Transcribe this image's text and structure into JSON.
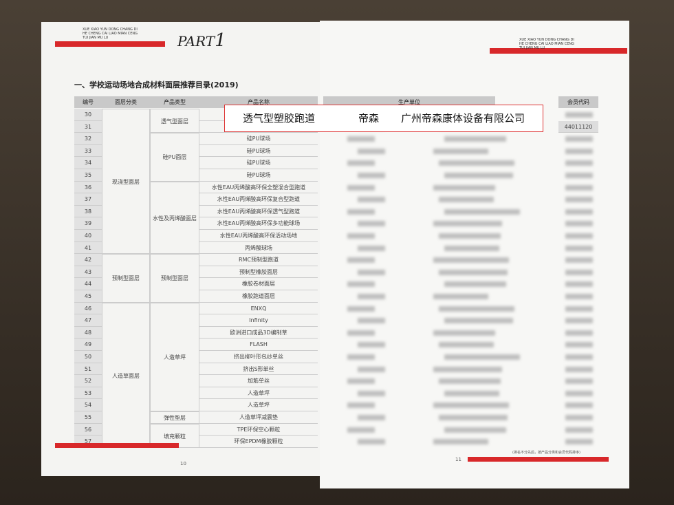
{
  "header": {
    "pinyin": [
      "XUE XIAO YUN DONG CHANG DI",
      "HE CHENG CAI LIAO MIAN CENG",
      "TUI JIAN MU LU"
    ],
    "part": "PART",
    "part_number": "1"
  },
  "title": "一、学校运动场地合成材料面层推荐目录(2019)",
  "table": {
    "columns": [
      "编号",
      "面层分类",
      "产品类型",
      "产品名称",
      "生产单位",
      "会员代码"
    ],
    "categories": [
      "现浇型面层",
      "预制型面层",
      "人造草面层"
    ],
    "types": [
      "透气型面层",
      "硅PU面层",
      "水性及丙烯酸面层",
      "预制型面层",
      "人造草坪",
      "弹性垫层",
      "填充颗粒"
    ],
    "rows": [
      {
        "number": "30"
      },
      {
        "number": "31",
        "member_code": "44011120"
      },
      {
        "number": "32",
        "name": "硅PU球场"
      },
      {
        "number": "33",
        "name": "硅PU球场"
      },
      {
        "number": "34",
        "name": "硅PU球场"
      },
      {
        "number": "35",
        "name": "硅PU球场"
      },
      {
        "number": "36",
        "name": "水性EAU丙烯酸高环保全塑混合型跑道"
      },
      {
        "number": "37",
        "name": "水性EAU丙烯酸高环保复合型跑道"
      },
      {
        "number": "38",
        "name": "水性EAU丙烯酸高环保透气型跑道"
      },
      {
        "number": "39",
        "name": "水性EAU丙烯酸高环保多功能球场"
      },
      {
        "number": "40",
        "name": "水性EAU丙烯酸高环保活动场地"
      },
      {
        "number": "41",
        "name": "丙烯酸球场"
      },
      {
        "number": "42",
        "name": "RMC预制型跑道"
      },
      {
        "number": "43",
        "name": "预制型橡胶面层"
      },
      {
        "number": "44",
        "name": "橡胶卷材面层"
      },
      {
        "number": "45",
        "name": "橡胶跑道面层"
      },
      {
        "number": "46",
        "name": "ENXQ"
      },
      {
        "number": "47",
        "name": "Infinity"
      },
      {
        "number": "48",
        "name": "欧洲进口成品3D编制草"
      },
      {
        "number": "49",
        "name": "FLASH"
      },
      {
        "number": "50",
        "name": "挤出柳叶形包纱单丝"
      },
      {
        "number": "51",
        "name": "挤出S形单丝"
      },
      {
        "number": "52",
        "name": "加筋单丝"
      },
      {
        "number": "53",
        "name": "人造草坪"
      },
      {
        "number": "54",
        "name": "人造草坪"
      },
      {
        "number": "55",
        "name": "人造草坪减震垫"
      },
      {
        "number": "56",
        "name": "TPE环保空心颗粒"
      },
      {
        "number": "57",
        "name": "环保EPDM橡胶颗粒"
      }
    ]
  },
  "highlight": {
    "product": "透气型塑胶跑道",
    "brand": "帝森",
    "company": "广州帝森康体设备有限公司"
  },
  "note": "(排名不分先后，按产品分类和会员代码排序)",
  "pages": [
    "10",
    "11"
  ]
}
